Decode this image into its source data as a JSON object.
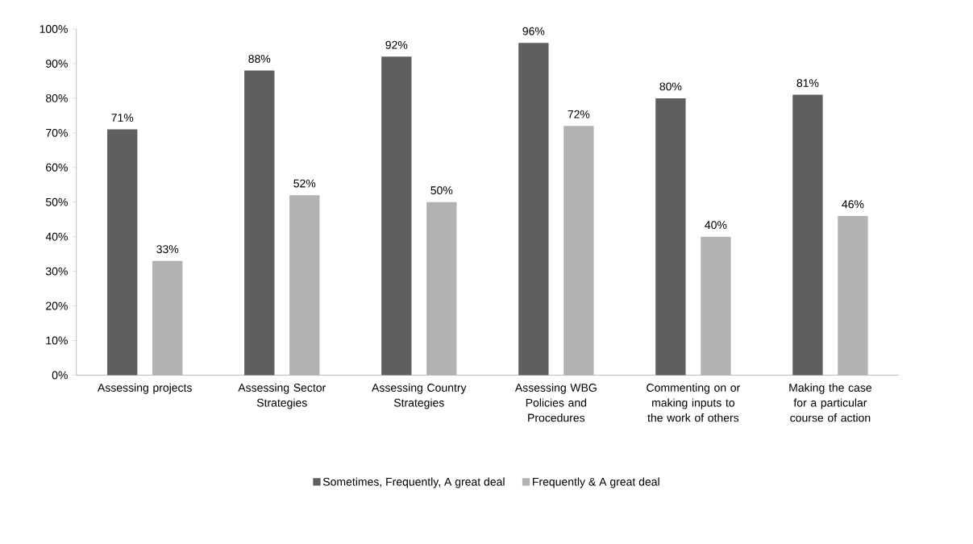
{
  "chart_data": {
    "type": "bar",
    "categories": [
      "Assessing projects",
      "Assessing Sector Strategies",
      "Assessing Country Strategies",
      "Assessing WBG Policies and Procedures",
      "Commenting on or making inputs to the work of others",
      "Making the case for a particular course of action"
    ],
    "series": [
      {
        "name": "Sometimes, Frequently, A great deal",
        "color": "#5f5f5f",
        "values": [
          71,
          88,
          92,
          96,
          80,
          81
        ],
        "value_labels": [
          "71%",
          "88%",
          "92%",
          "96%",
          "80%",
          "81%"
        ]
      },
      {
        "name": "Frequently & A great deal",
        "color": "#b2b2b2",
        "values": [
          33,
          52,
          50,
          72,
          40,
          46
        ],
        "value_labels": [
          "33%",
          "52%",
          "50%",
          "72%",
          "40%",
          "46%"
        ]
      }
    ],
    "ylim": [
      0,
      100
    ],
    "yticks": [
      {
        "value": 0,
        "label": "0%"
      },
      {
        "value": 10,
        "label": "10%"
      },
      {
        "value": 20,
        "label": "20%"
      },
      {
        "value": 30,
        "label": "30%"
      },
      {
        "value": 40,
        "label": "40%"
      },
      {
        "value": 50,
        "label": "50%"
      },
      {
        "value": 60,
        "label": "60%"
      },
      {
        "value": 70,
        "label": "70%"
      },
      {
        "value": 80,
        "label": "80%"
      },
      {
        "value": 90,
        "label": "90%"
      },
      {
        "value": 100,
        "label": "100%"
      }
    ],
    "legend": "bottom"
  }
}
